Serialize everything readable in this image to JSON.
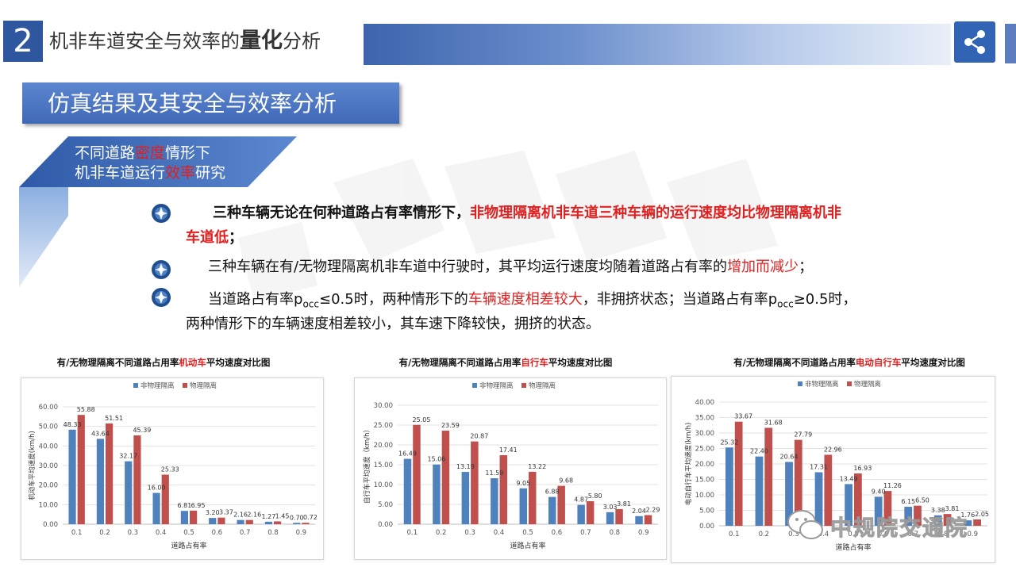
{
  "header": {
    "section_number": "2",
    "title_part1": "机非车道安全与效率的",
    "title_emph": "量化",
    "title_part2": "分析"
  },
  "subsection": {
    "title": "仿真结果及其安全与效率分析"
  },
  "tag": {
    "line1_a": "不同道路",
    "line1_red": "密度",
    "line1_b": "情形下",
    "line2_a": "机非车道运行",
    "line2_red": "效率",
    "line2_b": "研究"
  },
  "bullets": {
    "b1_black": "三种车辆无论在何种道路占有率情形下，",
    "b1_red1": "非物理隔离机非车道三种车辆的运行速度均比物理隔离机非",
    "b1_red2": "车道低",
    "b1_end": "；",
    "b2_black": "三种车辆在有/无物理隔离机非车道中行驶时，其平均运行速度均随着道路占有率的",
    "b2_red": "增加而减少",
    "b2_end": "；",
    "b3_a": "当道路占有率p",
    "b3_sub1": "occ",
    "b3_b": "≤0.5时，两种情形下的",
    "b3_red": "车辆速度相差较大",
    "b3_c": "，非拥挤状态；当道路占有率p",
    "b3_sub2": "occ",
    "b3_d": "≥0.5时，",
    "b3_line2": "两种情形下的车辆速度相差较小，其车速下降较快，拥挤的状态。"
  },
  "chart_titles": [
    {
      "a": "有/无物理隔离不同道路占用率",
      "red": "机动车",
      "b": "平均速度对比图"
    },
    {
      "a": "有/无物理隔离不同道路占用率",
      "red": "自行车",
      "b": "平均速度对比图"
    },
    {
      "a": "有/无物理隔离不同道路占用率",
      "red": "电动自行车",
      "b": "平均速度对比图"
    }
  ],
  "colors": {
    "series_non_physical": "#4f81bd",
    "series_physical": "#c0504d",
    "accent_red": "#e02020",
    "brand_blue": "#2f57a0"
  },
  "icons": [
    "share-icon",
    "bullet-gear-icon",
    "wechat-logo-icon"
  ],
  "watermark": {
    "text": "中规院交通院"
  },
  "chart_data": [
    {
      "type": "bar",
      "categories": [
        "0.1",
        "0.2",
        "0.3",
        "0.4",
        "0.5",
        "0.6",
        "0.7",
        "0.8",
        "0.9"
      ],
      "series": [
        {
          "name": "非物理隔离",
          "values": [
            48.33,
            43.64,
            32.17,
            16.0,
            6.81,
            3.2,
            2.16,
            1.27,
            0.7
          ]
        },
        {
          "name": "物理隔离",
          "values": [
            55.88,
            51.51,
            45.39,
            25.33,
            6.95,
            3.37,
            2.16,
            1.45,
            0.72
          ]
        }
      ],
      "value_labels_nonphys": [
        "48.33",
        "43.64",
        "32.17",
        "16.00",
        "6.81",
        "3.20",
        "2.16",
        "1.27",
        "0.70"
      ],
      "value_labels_phys": [
        "55.88",
        "51.51",
        "45.39",
        "25.33",
        "6.95",
        "3.37",
        "2.16",
        "1.45",
        "0.72"
      ],
      "ylabel": "机动车平均速度(km/h)",
      "xlabel": "道路占有率",
      "ylim": [
        0,
        60
      ],
      "yticks": [
        "0.00",
        "10.00",
        "20.00",
        "30.00",
        "40.00",
        "50.00",
        "60.00"
      ],
      "legend": "top"
    },
    {
      "type": "bar",
      "categories": [
        "0.1",
        "0.2",
        "0.3",
        "0.4",
        "0.5",
        "0.6",
        "0.7",
        "0.8",
        "0.9"
      ],
      "series": [
        {
          "name": "非物理隔离",
          "values": [
            16.49,
            15.06,
            13.19,
            11.59,
            9.05,
            6.88,
            4.87,
            3.03,
            2.04
          ]
        },
        {
          "name": "物理隔离",
          "values": [
            25.05,
            23.59,
            20.87,
            17.41,
            13.22,
            9.68,
            5.8,
            3.81,
            2.29
          ]
        }
      ],
      "value_labels_nonphys": [
        "16.49",
        "15.06",
        "13.19",
        "11.59",
        "9.05",
        "6.88",
        "4.87",
        "3.03",
        "2.04"
      ],
      "value_labels_phys": [
        "25.05",
        "23.59",
        "20.87",
        "17.41",
        "13.22",
        "9.68",
        "5.80",
        "3.81",
        "2.29"
      ],
      "ylabel": "自行车平均速度（km/h）",
      "xlabel": "道路占有率",
      "ylim": [
        0,
        30
      ],
      "yticks": [
        "0.00",
        "5.00",
        "10.00",
        "15.00",
        "20.00",
        "25.00",
        "30.00"
      ],
      "legend": "top"
    },
    {
      "type": "bar",
      "categories": [
        "0.1",
        "0.2",
        "0.3",
        "0.4",
        "0.5",
        "0.6",
        "0.7",
        "0.8",
        "0.9"
      ],
      "series": [
        {
          "name": "非物理隔离",
          "values": [
            25.32,
            22.4,
            20.64,
            17.31,
            13.49,
            9.4,
            6.15,
            3.38,
            1.76
          ]
        },
        {
          "name": "物理隔离",
          "values": [
            33.67,
            31.68,
            27.79,
            22.96,
            16.93,
            11.26,
            6.5,
            3.81,
            2.05
          ]
        }
      ],
      "value_labels_nonphys": [
        "25.32",
        "22.40",
        "20.64",
        "17.31",
        "13.49",
        "9.40",
        "6.15",
        "3.38",
        "1.76"
      ],
      "value_labels_phys": [
        "33.67",
        "31.68",
        "27.79",
        "22.96",
        "16.93",
        "11.26",
        "6.50",
        "3.81",
        "2.05"
      ],
      "ylabel": "电动自行车平均速度(km/h)",
      "xlabel": "道路占有率",
      "ylim": [
        0,
        40
      ],
      "yticks": [
        "0.00",
        "5.00",
        "10.00",
        "15.00",
        "20.00",
        "25.00",
        "30.00",
        "35.00",
        "40.00"
      ],
      "legend": "top"
    }
  ]
}
